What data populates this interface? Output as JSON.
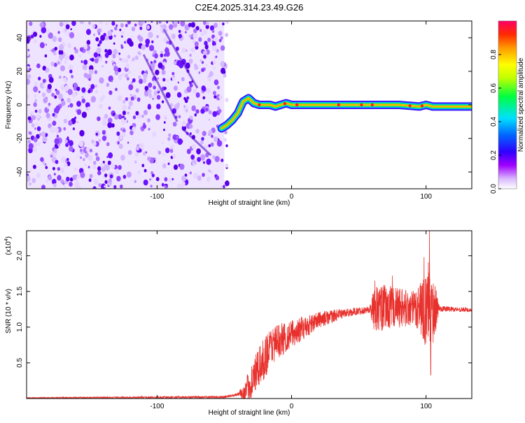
{
  "title": "C2E4.2025.314.23.49.G26",
  "colors": {
    "snr_line": "#e8302c",
    "spec_background": "#b28cff",
    "spec_ridge_core": "#ff2020"
  },
  "chart_data": [
    {
      "type": "heatmap",
      "xlabel": "Height of straight line (km)",
      "ylabel": "Frequency (Hz)",
      "xlim": [
        -197,
        134
      ],
      "ylim": [
        -50,
        50
      ],
      "xticks": [
        -100,
        0,
        100
      ],
      "xtick_labels": [
        "-100",
        "0",
        "100"
      ],
      "yticks": [
        -40,
        -20,
        0,
        20,
        40
      ],
      "ytick_labels": [
        "-40",
        "-20",
        "0",
        "20",
        "40"
      ],
      "noise_region_xmax": -50,
      "ridge": {
        "x": [
          -52,
          -48,
          -44,
          -40,
          -36,
          -32,
          -28,
          -24,
          -20,
          -16,
          -12,
          -8,
          -4,
          0,
          10,
          20,
          40,
          60,
          80,
          95,
          100,
          105,
          120,
          134
        ],
        "y": [
          -14,
          -12,
          -9,
          -5,
          2,
          4,
          1,
          0,
          0,
          0,
          -1,
          0,
          1,
          0,
          0,
          0,
          0,
          0,
          0,
          -1,
          0,
          -1,
          -1,
          -1
        ]
      },
      "colorbar": {
        "label": "Normalized spectral amplitude",
        "range": [
          0,
          1
        ],
        "ticks": [
          0.0,
          0.2,
          0.4,
          0.6,
          0.8
        ],
        "tick_labels": [
          "0.0",
          "0.2",
          "0.4",
          "0.6",
          "0.8"
        ]
      }
    },
    {
      "type": "line",
      "xlabel": "Height of straight line (km)",
      "ylabel": "SNR (10 * v/v)",
      "y_multiplier_label": "(x10",
      "y_multiplier_exp": "4",
      "xlim": [
        -197,
        134
      ],
      "ylim": [
        0,
        2.35
      ],
      "xticks": [
        -100,
        0,
        100
      ],
      "xtick_labels": [
        "-100",
        "0",
        "100"
      ],
      "yticks": [
        0.5,
        1.0,
        1.5,
        2.0
      ],
      "ytick_labels": [
        "0.5",
        "1.0",
        "1.5",
        "2.0"
      ],
      "envelope": {
        "x": [
          -197,
          -50,
          -35,
          -28,
          -22,
          -15,
          -5,
          5,
          20,
          40,
          60,
          70,
          80,
          90,
          96,
          100,
          102,
          104,
          106,
          110,
          134
        ],
        "y": [
          0.01,
          0.02,
          0.08,
          0.3,
          0.5,
          0.75,
          0.85,
          0.95,
          1.1,
          1.2,
          1.25,
          1.27,
          1.28,
          1.25,
          1.3,
          1.2,
          1.4,
          1.2,
          1.25,
          1.26,
          1.24
        ]
      },
      "noise_amp": {
        "x": [
          -197,
          -40,
          -30,
          -20,
          0,
          20,
          40,
          58,
          62,
          90,
          96,
          104,
          110,
          134
        ],
        "y": [
          0.005,
          0.02,
          0.25,
          0.3,
          0.2,
          0.12,
          0.06,
          0.05,
          0.35,
          0.25,
          0.4,
          0.6,
          0.04,
          0.03
        ]
      },
      "peaks": [
        {
          "x": 102.5,
          "y": 2.35
        },
        {
          "x": 103.5,
          "y": 0.33
        },
        {
          "x": 98.5,
          "y": 1.98
        },
        {
          "x": 75,
          "y": 1.72
        },
        {
          "x": 62,
          "y": 1.65
        }
      ]
    }
  ]
}
